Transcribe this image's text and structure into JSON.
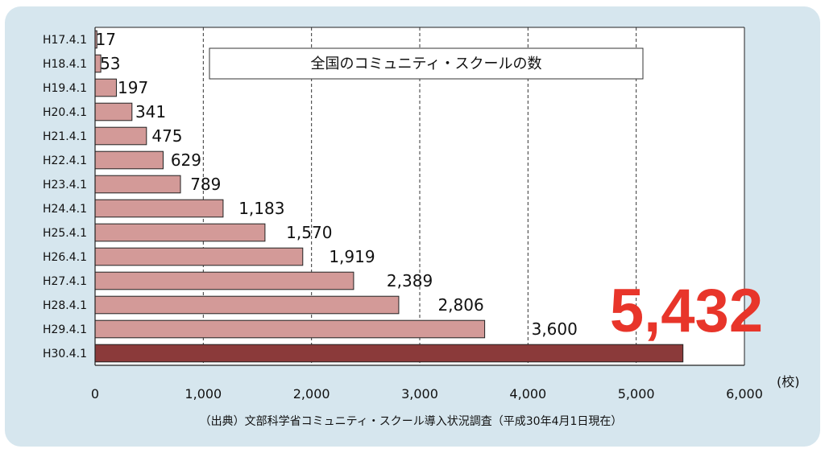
{
  "chart_data": {
    "type": "bar",
    "orientation": "horizontal",
    "title": "全国のコミュニティ・スクールの数",
    "categories": [
      "H17.4.1",
      "H18.4.1",
      "H19.4.1",
      "H20.4.1",
      "H21.4.1",
      "H22.4.1",
      "H23.4.1",
      "H24.4.1",
      "H25.4.1",
      "H26.4.1",
      "H27.4.1",
      "H28.4.1",
      "H29.4.1",
      "H30.4.1"
    ],
    "values": [
      17,
      53,
      197,
      341,
      475,
      629,
      789,
      1183,
      1570,
      1919,
      2389,
      2806,
      3600,
      5432
    ],
    "value_labels": [
      "17",
      "53",
      "197",
      "341",
      "475",
      "629",
      "789",
      "1,183",
      "1,570",
      "1,919",
      "2,389",
      "2,806",
      "3,600",
      "5,432"
    ],
    "xlim": [
      0,
      6000
    ],
    "x_ticks": [
      0,
      1000,
      2000,
      3000,
      4000,
      5000,
      6000
    ],
    "x_tick_labels": [
      "0",
      "1,000",
      "2,000",
      "3,000",
      "4,000",
      "5,000",
      "6,000"
    ],
    "x_unit": "(校)",
    "grid": "vertical dashed",
    "highlight": {
      "index": 13,
      "label": "5,432",
      "color": "#e8352a"
    },
    "colors": {
      "bar": "#d39a98",
      "bar_highlight": "#8b3a3a",
      "edge": "#222222"
    },
    "source": "（出典）文部科学省コミュニティ・スクール導入状況調査（平成30年4月1日現在）"
  }
}
